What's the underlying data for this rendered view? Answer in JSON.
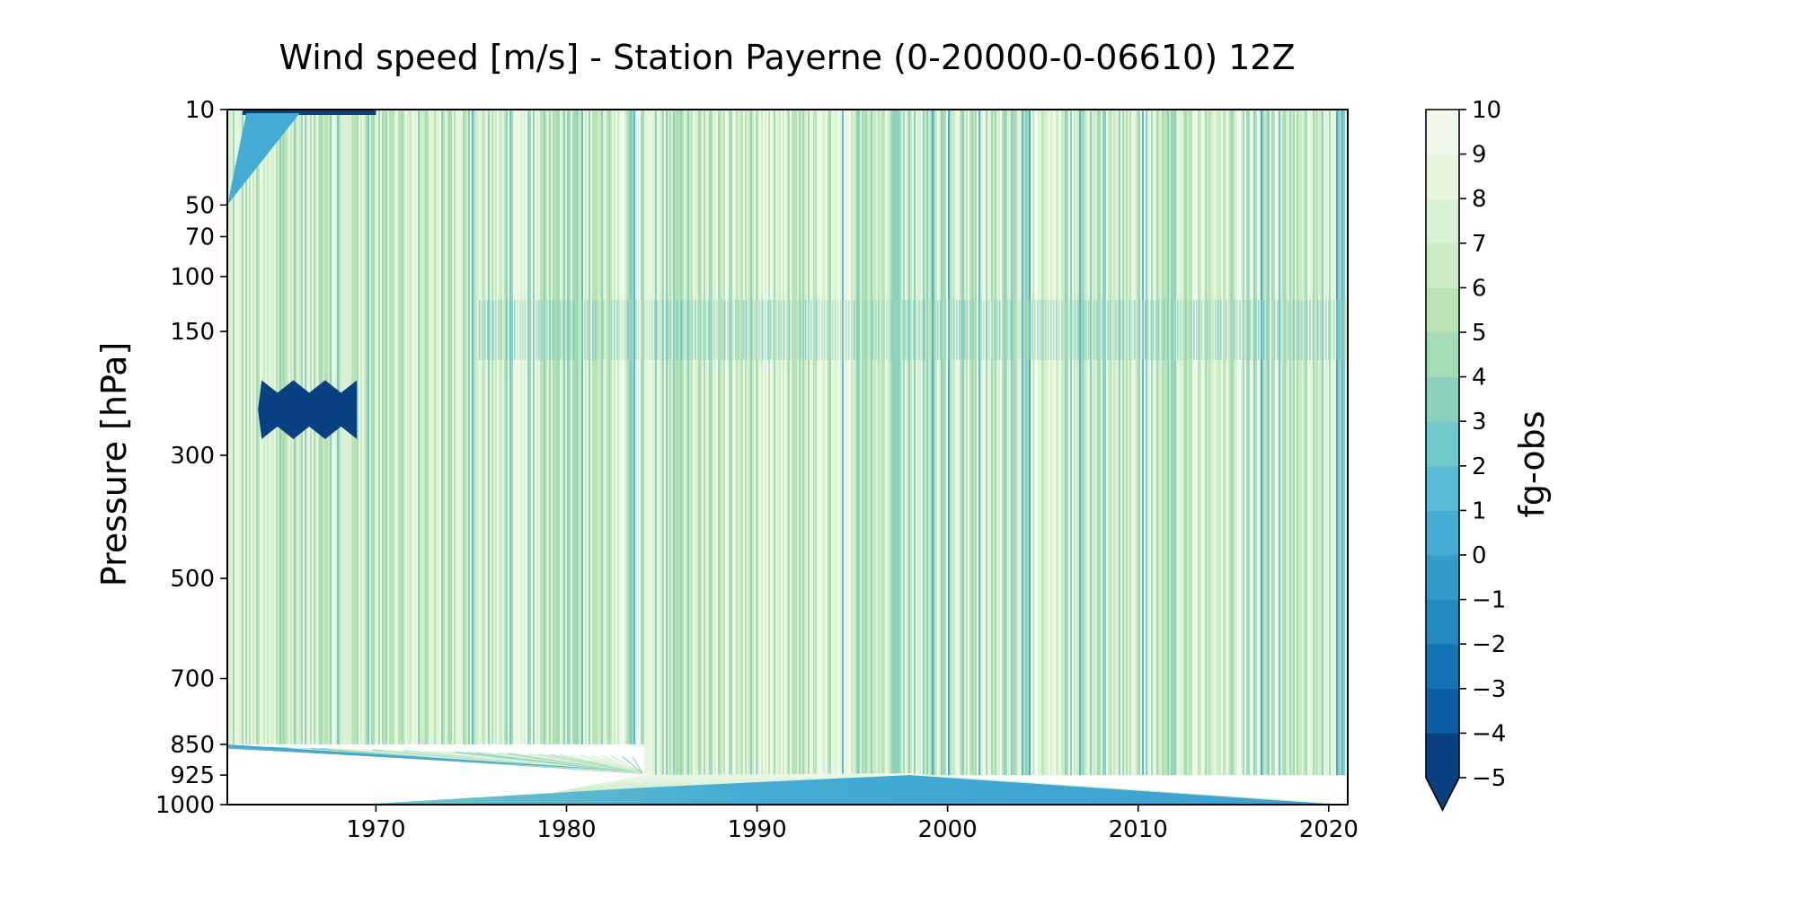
{
  "chart_data": {
    "type": "heatmap",
    "title": "Wind speed [m/s] - Station Payerne (0-20000-0-06610) 12Z",
    "xlabel": "",
    "ylabel": "Pressure [hPa]",
    "colorbar_label": "fg-obs",
    "x_ticks": [
      1970,
      1980,
      1990,
      2000,
      2010,
      2020
    ],
    "xlim": [
      1962.2,
      2021.0
    ],
    "y_ticks": [
      10,
      50,
      70,
      100,
      150,
      300,
      500,
      700,
      850,
      925,
      1000
    ],
    "ylim": [
      1000,
      10
    ],
    "y_scale": "log-p (fractional power)",
    "pressure_levels": [
      10,
      50,
      70,
      100,
      150,
      200,
      250,
      300,
      400,
      500,
      700,
      850,
      925,
      1000
    ],
    "color_scale": {
      "min": -5,
      "max": 10,
      "step": 1,
      "ticks": [
        10,
        9,
        8,
        7,
        6,
        5,
        4,
        3,
        2,
        1,
        0,
        -1,
        -2,
        -3,
        -4,
        -5
      ],
      "tick_labels": [
        "10",
        "9",
        "8",
        "7",
        "6",
        "5",
        "4",
        "3",
        "2",
        "1",
        "0",
        "−1",
        "−2",
        "−3",
        "−4",
        "−5"
      ],
      "extend": "min",
      "colors": [
        "#084081",
        "#0b5ea2",
        "#1674b3",
        "#2389be",
        "#339bc9",
        "#45abd3",
        "#5bbbd4",
        "#72c9c9",
        "#8bd1bd",
        "#a3dbb7",
        "#b8e3b5",
        "#cbebc5",
        "#dbf1d5",
        "#e6f5de",
        "#f0f9ea"
      ],
      "cmap_name": "GnBu_r"
    },
    "features": [
      {
        "desc": "blocky high deficit region",
        "x": [
          1964.0,
          1969.0
        ],
        "p": [
          205,
          275
        ],
        "value": -5
      },
      {
        "desc": "mid-level band",
        "x": [
          1962.2,
          2021.0
        ],
        "p": [
          150,
          850
        ],
        "typical_range": [
          3,
          8
        ]
      },
      {
        "desc": "missing lower levels",
        "x": [
          1962.2,
          1984.0
        ],
        "p": [
          850,
          1000
        ],
        "value": null
      },
      {
        "desc": "low-level wedge",
        "x": [
          1969.0,
          2021.0
        ],
        "p": [
          925,
          1000
        ],
        "value": 0
      }
    ],
    "grid": false,
    "legend": "colorbar-right"
  }
}
